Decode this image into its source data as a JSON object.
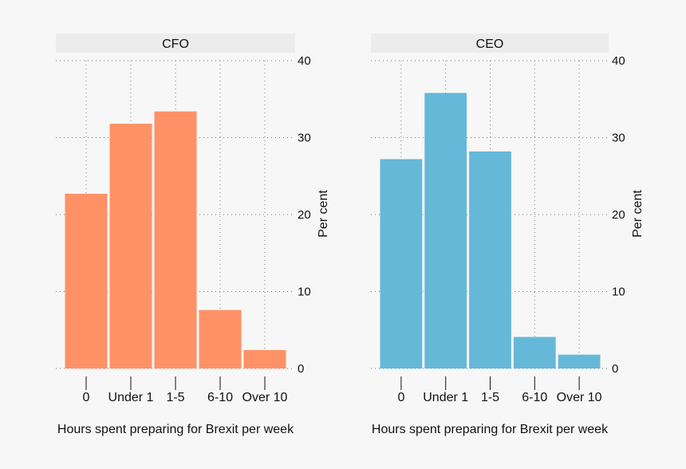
{
  "chart_data": [
    {
      "type": "bar",
      "title": "CFO",
      "categories": [
        "0",
        "Under 1",
        "1-5",
        "6-10",
        "Over 10"
      ],
      "values": [
        22.7,
        31.8,
        33.4,
        7.6,
        2.4
      ],
      "xlabel": "Hours spent preparing for Brexit per week",
      "ylabel": "Per cent",
      "ylim": [
        0,
        40
      ],
      "yticks": [
        "0",
        "10",
        "20",
        "30",
        "40"
      ],
      "color": "#ff9166",
      "grid": true
    },
    {
      "type": "bar",
      "title": "CEO",
      "categories": [
        "0",
        "Under 1",
        "1-5",
        "6-10",
        "Over 10"
      ],
      "values": [
        27.2,
        35.8,
        28.2,
        4.1,
        1.8
      ],
      "xlabel": "Hours spent preparing for Brexit per week",
      "ylabel": "Per cent",
      "ylim": [
        0,
        40
      ],
      "yticks": [
        "0",
        "10",
        "20",
        "30",
        "40"
      ],
      "color": "#66b8d9",
      "grid": true
    }
  ]
}
